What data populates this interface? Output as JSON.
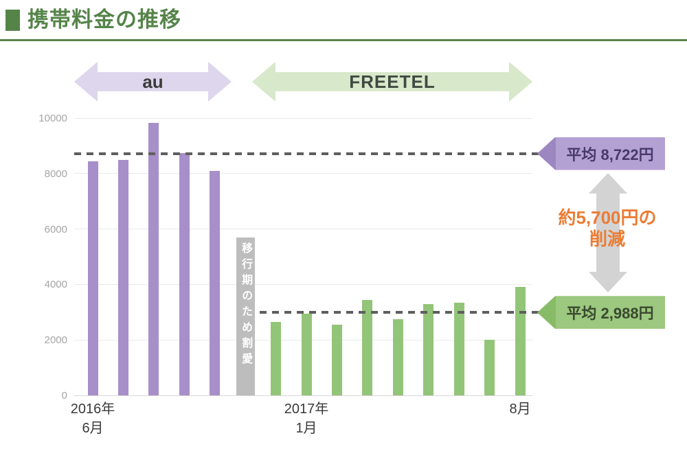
{
  "header": {
    "title": "携帯料金の推移"
  },
  "period_arrows": [
    {
      "label": "au"
    },
    {
      "label": "FREETEL"
    }
  ],
  "chart_data": {
    "type": "bar",
    "title": "携帯料金の推移",
    "ylabel": "",
    "xlabel": "",
    "ylim": [
      0,
      10000
    ],
    "yticks": [
      0,
      2000,
      4000,
      6000,
      8000,
      10000
    ],
    "grid": true,
    "bars": [
      {
        "value": 8450,
        "group": "au"
      },
      {
        "value": 8500,
        "group": "au"
      },
      {
        "value": 9830,
        "group": "au"
      },
      {
        "value": 8730,
        "group": "au"
      },
      {
        "value": 8100,
        "group": "au"
      },
      {
        "value": 5700,
        "group": "transition",
        "label": "移行期のため割愛"
      },
      {
        "value": 2650,
        "group": "freetel"
      },
      {
        "value": 2950,
        "group": "freetel"
      },
      {
        "value": 2550,
        "group": "freetel"
      },
      {
        "value": 3450,
        "group": "freetel"
      },
      {
        "value": 2750,
        "group": "freetel"
      },
      {
        "value": 3300,
        "group": "freetel"
      },
      {
        "value": 3350,
        "group": "freetel"
      },
      {
        "value": 2000,
        "group": "freetel"
      },
      {
        "value": 3900,
        "group": "freetel"
      }
    ],
    "x_labels": [
      {
        "bar_index": 0,
        "line1": "2016年",
        "line2": "6月"
      },
      {
        "bar_index": 7,
        "line1": "2017年",
        "line2": "1月"
      },
      {
        "bar_index": 14,
        "line1": "8月",
        "line2": ""
      }
    ],
    "averages": [
      {
        "value": 8722,
        "label": "平均 8,722円",
        "series": "au",
        "line_start_bar": 0
      },
      {
        "value": 2988,
        "label": "平均 2,988円",
        "series": "freetel",
        "line_start_bar": 6
      }
    ],
    "annotation": {
      "line1": "約5,700円の",
      "line2": "削減"
    },
    "legend_position": "none"
  },
  "colors": {
    "accent_green": "#558449",
    "bar_au": "#a78fc9",
    "bar_freetel": "#93c579",
    "bar_transition": "#bdbdbd",
    "arrow_au_bg": "#ded6ec",
    "arrow_freetel_bg": "#d8e8ca",
    "tag_purple_bg": "#b4a1d3",
    "tag_green_bg": "#9cc87f",
    "annotation_orange": "#eb7c33",
    "dash_gray": "#5e5e5e"
  }
}
